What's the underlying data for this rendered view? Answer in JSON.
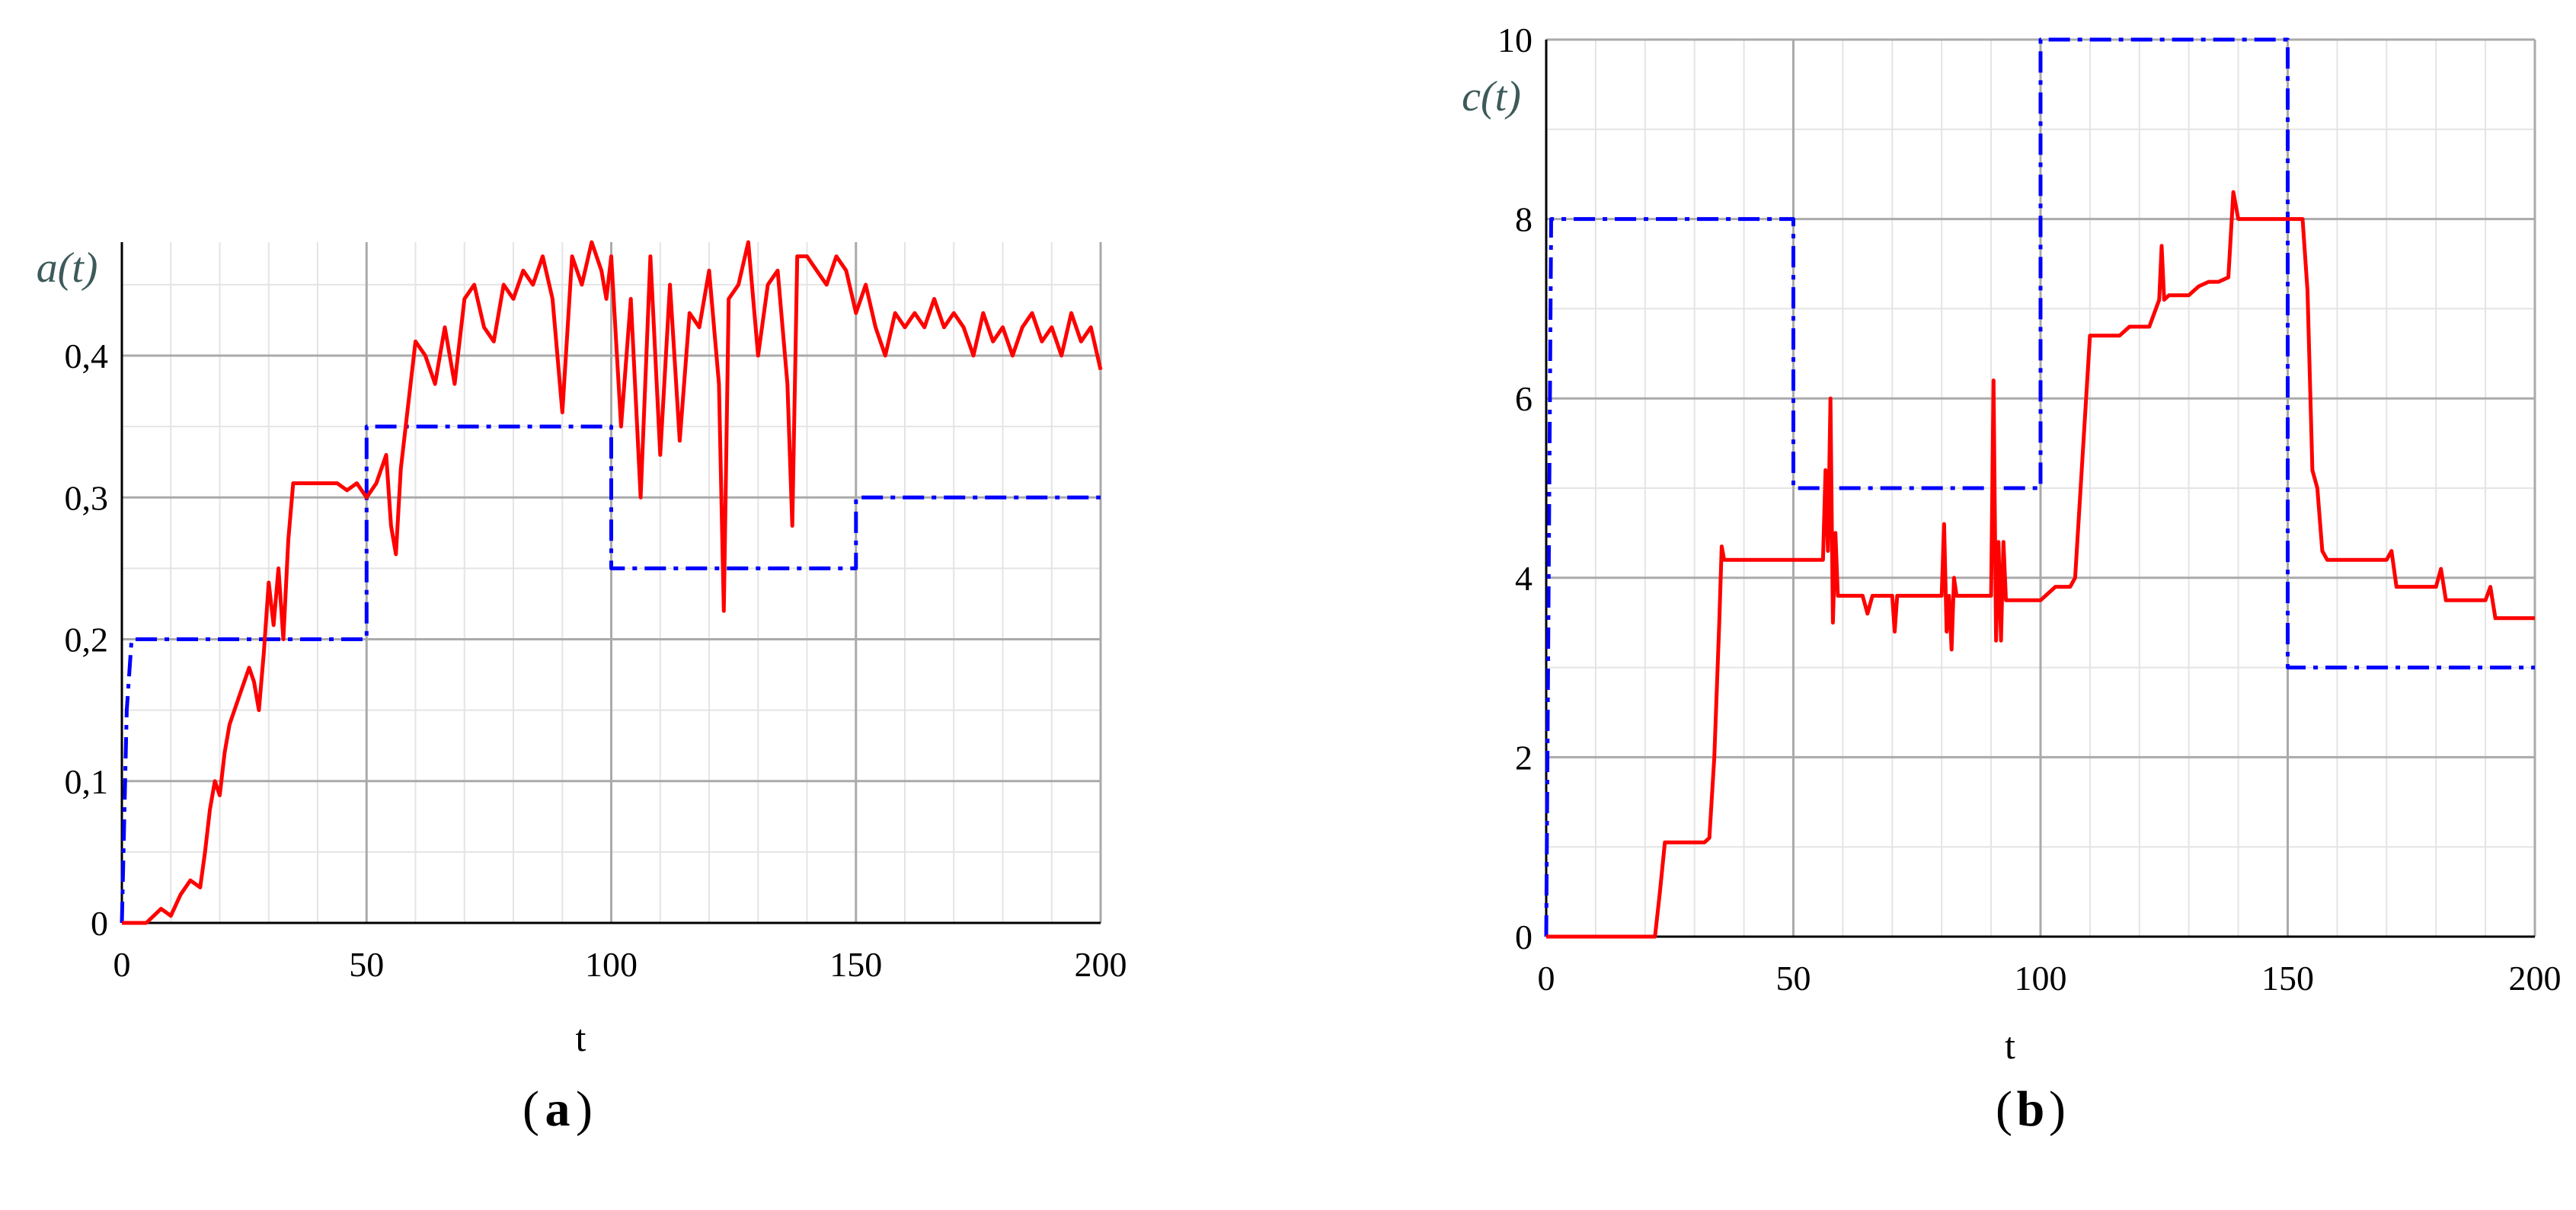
{
  "chart_data": [
    {
      "type": "line",
      "panel_label": "a",
      "ylabel": "a(t)",
      "xlabel": "t",
      "xlim": [
        0,
        200
      ],
      "ylim": [
        0,
        0.48
      ],
      "xticks": [
        0,
        50,
        100,
        150,
        200
      ],
      "xtick_labels": [
        "0",
        "50",
        "100",
        "150",
        "200"
      ],
      "yticks": [
        0,
        0.1,
        0.2,
        0.3,
        0.4
      ],
      "ytick_labels": [
        "0",
        "0,1",
        "0,2",
        "0,3",
        "0,4"
      ],
      "grid": true,
      "series": [
        {
          "color": "#0000ff",
          "style": "dash-dot",
          "x": [
            0,
            1,
            2,
            50,
            50,
            100,
            100,
            150,
            150,
            200
          ],
          "y": [
            0,
            0.15,
            0.2,
            0.2,
            0.35,
            0.35,
            0.25,
            0.25,
            0.3,
            0.3
          ]
        },
        {
          "color": "#ff0000",
          "style": "solid",
          "x": [
            0,
            5,
            8,
            10,
            12,
            14,
            16,
            17,
            18,
            19,
            20,
            21,
            22,
            24,
            26,
            27,
            28,
            29,
            30,
            31,
            32,
            33,
            34,
            35,
            36,
            38,
            40,
            42,
            44,
            46,
            48,
            50,
            52,
            54,
            55,
            56,
            57,
            58,
            60,
            62,
            64,
            66,
            68,
            70,
            72,
            74,
            76,
            78,
            80,
            82,
            84,
            86,
            88,
            90,
            92,
            94,
            96,
            98,
            99,
            100,
            101,
            102,
            104,
            106,
            108,
            110,
            112,
            114,
            116,
            118,
            120,
            122,
            123,
            124,
            126,
            128,
            130,
            132,
            134,
            136,
            137,
            138,
            140,
            142,
            144,
            146,
            148,
            150,
            152,
            154,
            156,
            158,
            160,
            162,
            164,
            166,
            168,
            170,
            172,
            174,
            176,
            178,
            180,
            182,
            184,
            186,
            188,
            190,
            192,
            194,
            196,
            198,
            200
          ],
          "y": [
            0,
            0,
            0.01,
            0.005,
            0.02,
            0.03,
            0.025,
            0.05,
            0.08,
            0.1,
            0.09,
            0.12,
            0.14,
            0.16,
            0.18,
            0.17,
            0.15,
            0.19,
            0.24,
            0.21,
            0.25,
            0.2,
            0.27,
            0.31,
            0.31,
            0.31,
            0.31,
            0.31,
            0.31,
            0.305,
            0.31,
            0.3,
            0.31,
            0.33,
            0.28,
            0.26,
            0.32,
            0.35,
            0.41,
            0.4,
            0.38,
            0.42,
            0.38,
            0.44,
            0.45,
            0.42,
            0.41,
            0.45,
            0.44,
            0.46,
            0.45,
            0.47,
            0.44,
            0.36,
            0.47,
            0.45,
            0.48,
            0.46,
            0.44,
            0.47,
            0.41,
            0.35,
            0.44,
            0.3,
            0.47,
            0.33,
            0.45,
            0.34,
            0.43,
            0.42,
            0.46,
            0.38,
            0.22,
            0.44,
            0.45,
            0.48,
            0.4,
            0.45,
            0.46,
            0.38,
            0.28,
            0.47,
            0.47,
            0.46,
            0.45,
            0.47,
            0.46,
            0.43,
            0.45,
            0.42,
            0.4,
            0.43,
            0.42,
            0.43,
            0.42,
            0.44,
            0.42,
            0.43,
            0.42,
            0.4,
            0.43,
            0.41,
            0.42,
            0.4,
            0.42,
            0.43,
            0.41,
            0.42,
            0.4,
            0.43,
            0.41,
            0.42,
            0.39
          ]
        }
      ]
    },
    {
      "type": "line",
      "panel_label": "b",
      "ylabel": "c(t)",
      "xlabel": "t",
      "xlim": [
        0,
        200
      ],
      "ylim": [
        0,
        10
      ],
      "xticks": [
        0,
        50,
        100,
        150,
        200
      ],
      "xtick_labels": [
        "0",
        "50",
        "100",
        "150",
        "200"
      ],
      "yticks": [
        0,
        2,
        4,
        6,
        8,
        10
      ],
      "ytick_labels": [
        "0",
        "2",
        "4",
        "6",
        "8",
        "10"
      ],
      "grid": true,
      "series": [
        {
          "color": "#0000ff",
          "style": "dash-dot",
          "x": [
            0,
            1,
            50,
            50,
            100,
            100,
            150,
            150,
            200
          ],
          "y": [
            0,
            8,
            8,
            5,
            5,
            10,
            10,
            3,
            3
          ]
        },
        {
          "color": "#ff0000",
          "style": "solid",
          "x": [
            0,
            22,
            23,
            24,
            32,
            33,
            34,
            35,
            35.5,
            36,
            55,
            56,
            56.5,
            57,
            57.5,
            58,
            58.5,
            59,
            60,
            64,
            65,
            66,
            70,
            70.5,
            71,
            72,
            80,
            80.5,
            81,
            81.5,
            82,
            82.5,
            83,
            90,
            90.5,
            91,
            91.5,
            92,
            92.5,
            93,
            93.5,
            94,
            100,
            103,
            106,
            107,
            110,
            111,
            112,
            116,
            118,
            120,
            122,
            124,
            124.5,
            125,
            126,
            128,
            130,
            132,
            134,
            136,
            138,
            139,
            140,
            141,
            142,
            148,
            150,
            152,
            153,
            154,
            155,
            156,
            157,
            158,
            160,
            165,
            170,
            171,
            172,
            180,
            181,
            182,
            190,
            191,
            192,
            200
          ],
          "y": [
            0,
            0,
            0.5,
            1.05,
            1.05,
            1.1,
            2,
            3.5,
            4.35,
            4.2,
            4.2,
            4.2,
            5.2,
            4.3,
            6,
            3.5,
            4.5,
            3.8,
            3.8,
            3.8,
            3.6,
            3.8,
            3.8,
            3.4,
            3.8,
            3.8,
            3.8,
            4.6,
            3.4,
            3.8,
            3.2,
            4,
            3.8,
            3.8,
            6.2,
            3.3,
            4.4,
            3.3,
            4.4,
            3.75,
            3.75,
            3.75,
            3.75,
            3.9,
            3.9,
            4,
            6.7,
            6.7,
            6.7,
            6.7,
            6.8,
            6.8,
            6.8,
            7.1,
            7.7,
            7.1,
            7.15,
            7.15,
            7.15,
            7.25,
            7.3,
            7.3,
            7.35,
            8.3,
            8,
            8,
            8,
            8,
            8,
            8,
            8,
            7.2,
            5.2,
            5,
            4.3,
            4.2,
            4.2,
            4.2,
            4.2,
            4.3,
            3.9,
            3.9,
            4.1,
            3.75,
            3.75,
            3.9,
            3.55,
            3.55
          ]
        }
      ]
    }
  ]
}
